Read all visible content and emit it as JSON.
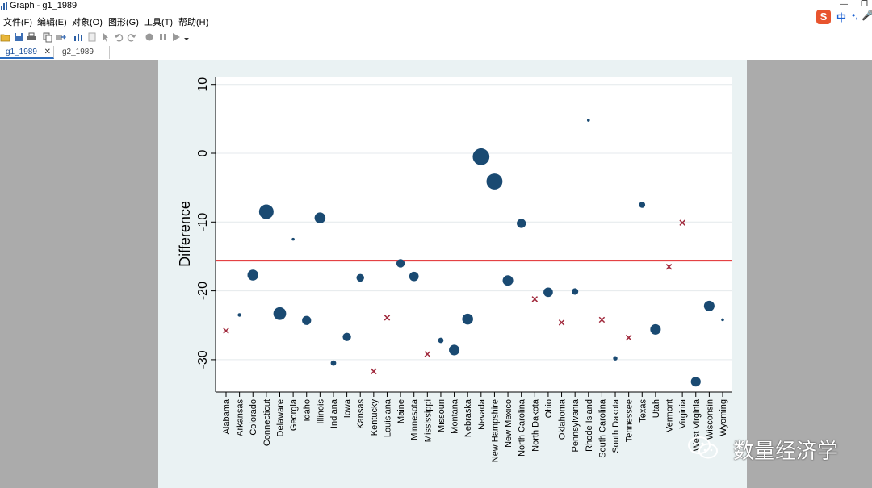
{
  "window": {
    "title": "Graph - g1_1989"
  },
  "menu": [
    {
      "label": "文件(F)"
    },
    {
      "label": "编辑(E)"
    },
    {
      "label": "对象(O)"
    },
    {
      "label": "图形(G)"
    },
    {
      "label": "工具(T)"
    },
    {
      "label": "帮助(H)"
    }
  ],
  "ime": {
    "logo": "S",
    "mode": "中",
    "dots": "•,",
    "mic": "🎤"
  },
  "tabs": [
    {
      "label": "g1_1989",
      "active": true,
      "close": "✕"
    },
    {
      "label": "g2_1989",
      "active": false
    }
  ],
  "watermark": {
    "text": "数量经济学"
  },
  "colors": {
    "dot": "#1a4a72",
    "cross": "#a0283b",
    "refline": "#e0262a",
    "plot_bg": "#ffffff",
    "frame_bg": "#eaf2f3"
  },
  "chart_data": {
    "type": "scatter",
    "ylabel": "Difference",
    "ylim": [
      -35,
      11
    ],
    "yticks": [
      10,
      0,
      -10,
      -20,
      -30
    ],
    "ytick_labels": [
      "10",
      "0",
      "-10",
      "-20",
      "-30"
    ],
    "reference_line": -15.6,
    "grid": true,
    "marker_note": "circles sized by weight; x markers for zero-weight states",
    "states": [
      {
        "name": "Alabama",
        "value": -25.8,
        "marker": "x",
        "size": 0
      },
      {
        "name": "Arkansas",
        "value": -23.5,
        "marker": "o",
        "size": 1
      },
      {
        "name": "Colorado",
        "value": -17.7,
        "marker": "o",
        "size": 3
      },
      {
        "name": "Connecticut",
        "value": -8.5,
        "marker": "o",
        "size": 4
      },
      {
        "name": "Delaware",
        "value": -23.3,
        "marker": "o",
        "size": 3.5
      },
      {
        "name": "Georgia",
        "value": -12.5,
        "marker": "o",
        "size": 0.6
      },
      {
        "name": "Idaho",
        "value": -24.3,
        "marker": "o",
        "size": 2.5
      },
      {
        "name": "Illinois",
        "value": -9.4,
        "marker": "o",
        "size": 3
      },
      {
        "name": "Indiana",
        "value": -30.5,
        "marker": "o",
        "size": 1.5
      },
      {
        "name": "Iowa",
        "value": -26.7,
        "marker": "o",
        "size": 2.3
      },
      {
        "name": "Kansas",
        "value": -18.1,
        "marker": "o",
        "size": 2.1
      },
      {
        "name": "Kentucky",
        "value": -31.7,
        "marker": "x",
        "size": 0
      },
      {
        "name": "Louisiana",
        "value": -23.9,
        "marker": "x",
        "size": 0
      },
      {
        "name": "Maine",
        "value": -16.0,
        "marker": "o",
        "size": 2.3
      },
      {
        "name": "Minnesota",
        "value": -17.9,
        "marker": "o",
        "size": 2.6
      },
      {
        "name": "Mississippi",
        "value": -29.2,
        "marker": "x",
        "size": 0
      },
      {
        "name": "Missouri",
        "value": -27.2,
        "marker": "o",
        "size": 1.5
      },
      {
        "name": "Montana",
        "value": -28.6,
        "marker": "o",
        "size": 2.9
      },
      {
        "name": "Nebraska",
        "value": -24.1,
        "marker": "o",
        "size": 3
      },
      {
        "name": "Nevada",
        "value": -0.5,
        "marker": "o",
        "size": 4.6
      },
      {
        "name": "New Hampshire",
        "value": -4.1,
        "marker": "o",
        "size": 4.4
      },
      {
        "name": "New Mexico",
        "value": -18.5,
        "marker": "o",
        "size": 2.9
      },
      {
        "name": "North Carolina",
        "value": -10.2,
        "marker": "o",
        "size": 2.5
      },
      {
        "name": "North Dakota",
        "value": -21.2,
        "marker": "x",
        "size": 0
      },
      {
        "name": "Ohio",
        "value": -20.2,
        "marker": "o",
        "size": 2.6
      },
      {
        "name": "Oklahoma",
        "value": -24.6,
        "marker": "x",
        "size": 0
      },
      {
        "name": "Pennsylvania",
        "value": -20.1,
        "marker": "o",
        "size": 1.8
      },
      {
        "name": "Rhode Island",
        "value": 4.8,
        "marker": "o",
        "size": 0.7
      },
      {
        "name": "South Carolina",
        "value": -24.2,
        "marker": "x",
        "size": 0
      },
      {
        "name": "South Dakota",
        "value": -29.8,
        "marker": "o",
        "size": 1.2
      },
      {
        "name": "Tennessee",
        "value": -26.8,
        "marker": "x",
        "size": 0
      },
      {
        "name": "Texas",
        "value": -7.5,
        "marker": "o",
        "size": 1.7
      },
      {
        "name": "Utah",
        "value": -25.6,
        "marker": "o",
        "size": 2.9
      },
      {
        "name": "Vermont",
        "value": -16.5,
        "marker": "x",
        "size": 0
      },
      {
        "name": "Virginia",
        "value": -10.1,
        "marker": "x",
        "size": 0
      },
      {
        "name": "West Virginia",
        "value": -33.2,
        "marker": "o",
        "size": 2.7
      },
      {
        "name": "Wisconsin",
        "value": -22.2,
        "marker": "o",
        "size": 2.9
      },
      {
        "name": "Wyoming",
        "value": -24.2,
        "marker": "o",
        "size": 0.7
      }
    ]
  }
}
